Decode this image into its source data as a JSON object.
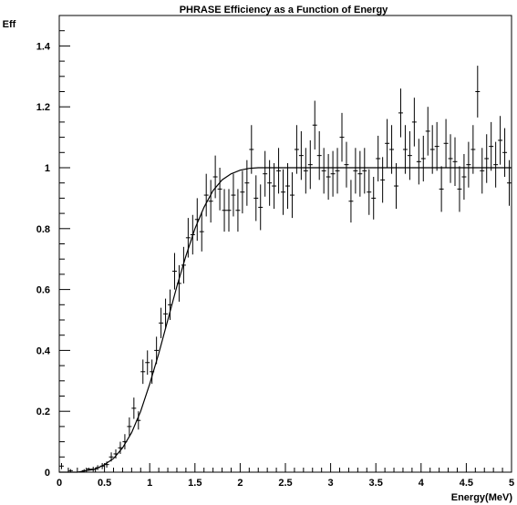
{
  "chart_data": {
    "type": "scatter",
    "title": "PHRASE Efficiency as a Function of Energy",
    "xlabel": "Energy(MeV)",
    "ylabel": "Eff",
    "xlim": [
      0,
      5
    ],
    "ylim": [
      0,
      1.5
    ],
    "x_ticks": [
      0,
      0.5,
      1,
      1.5,
      2,
      2.5,
      3,
      3.5,
      4,
      4.5,
      5
    ],
    "x_tick_labels": [
      "0",
      "0.5",
      "1",
      "1.5",
      "2",
      "2.5",
      "3",
      "3.5",
      "4",
      "4.5",
      "5"
    ],
    "y_ticks": [
      0,
      0.2,
      0.4,
      0.6,
      0.8,
      1,
      1.2,
      1.4
    ],
    "y_tick_labels": [
      "0",
      "0.2",
      "0.4",
      "0.6",
      "0.8",
      "1",
      "1.2",
      "1.4"
    ],
    "grid": false,
    "legend": "none",
    "colors": {
      "marks": "#000000",
      "background": "#ffffff"
    },
    "x_bin_halfwidth": 0.025,
    "series": [
      {
        "kind": "points_with_errors",
        "x": [
          0.025,
          0.075,
          0.125,
          0.175,
          0.225,
          0.275,
          0.325,
          0.375,
          0.425,
          0.475,
          0.525,
          0.575,
          0.625,
          0.675,
          0.725,
          0.775,
          0.825,
          0.875,
          0.925,
          0.975,
          1.025,
          1.075,
          1.125,
          1.175,
          1.225,
          1.275,
          1.325,
          1.375,
          1.425,
          1.475,
          1.525,
          1.575,
          1.625,
          1.675,
          1.725,
          1.775,
          1.825,
          1.875,
          1.925,
          1.975,
          2.025,
          2.075,
          2.125,
          2.175,
          2.225,
          2.275,
          2.325,
          2.375,
          2.425,
          2.475,
          2.525,
          2.575,
          2.625,
          2.675,
          2.725,
          2.775,
          2.825,
          2.875,
          2.925,
          2.975,
          3.025,
          3.075,
          3.125,
          3.175,
          3.225,
          3.275,
          3.325,
          3.375,
          3.425,
          3.475,
          3.525,
          3.575,
          3.625,
          3.675,
          3.725,
          3.775,
          3.825,
          3.875,
          3.925,
          3.975,
          4.025,
          4.075,
          4.125,
          4.175,
          4.225,
          4.275,
          4.325,
          4.375,
          4.425,
          4.475,
          4.525,
          4.575,
          4.625,
          4.675,
          4.725,
          4.775,
          4.825,
          4.875,
          4.925,
          4.975
        ],
        "y": [
          0.02,
          0.0,
          0.005,
          0.0,
          0.0,
          0.005,
          0.01,
          0.01,
          0.015,
          0.02,
          0.025,
          0.05,
          0.06,
          0.08,
          0.1,
          0.15,
          0.21,
          0.17,
          0.33,
          0.36,
          0.33,
          0.4,
          0.49,
          0.52,
          0.55,
          0.66,
          0.62,
          0.68,
          0.77,
          0.78,
          0.83,
          0.79,
          0.91,
          0.89,
          0.97,
          0.93,
          0.86,
          0.86,
          0.91,
          0.86,
          0.92,
          0.95,
          1.06,
          0.9,
          0.87,
          0.98,
          0.95,
          0.94,
          0.99,
          0.92,
          0.94,
          0.91,
          1.06,
          1.04,
          0.99,
          1.01,
          1.14,
          1.04,
          0.99,
          0.97,
          0.98,
          0.99,
          1.1,
          1.01,
          0.89,
          0.99,
          0.98,
          0.99,
          0.92,
          0.9,
          1.03,
          0.96,
          1.08,
          1.06,
          0.94,
          1.18,
          1.06,
          1.04,
          1.15,
          1.02,
          1.03,
          1.12,
          1.06,
          1.07,
          0.93,
          1.08,
          1.03,
          1.02,
          0.93,
          0.97,
          1.01,
          1.06,
          1.25,
          0.99,
          1.03,
          1.07,
          1.01,
          1.09,
          1.05,
          0.95
        ],
        "yerr": [
          0.01,
          0.0,
          0.005,
          0.0,
          0.0,
          0.005,
          0.005,
          0.008,
          0.008,
          0.01,
          0.01,
          0.015,
          0.015,
          0.02,
          0.025,
          0.03,
          0.035,
          0.03,
          0.04,
          0.04,
          0.04,
          0.045,
          0.05,
          0.05,
          0.05,
          0.06,
          0.06,
          0.06,
          0.065,
          0.065,
          0.07,
          0.065,
          0.07,
          0.07,
          0.07,
          0.07,
          0.07,
          0.07,
          0.07,
          0.07,
          0.07,
          0.075,
          0.08,
          0.075,
          0.075,
          0.075,
          0.075,
          0.075,
          0.075,
          0.075,
          0.075,
          0.075,
          0.08,
          0.08,
          0.075,
          0.08,
          0.08,
          0.08,
          0.075,
          0.075,
          0.075,
          0.075,
          0.08,
          0.075,
          0.07,
          0.075,
          0.075,
          0.075,
          0.075,
          0.07,
          0.075,
          0.075,
          0.08,
          0.08,
          0.075,
          0.08,
          0.08,
          0.08,
          0.08,
          0.075,
          0.075,
          0.08,
          0.08,
          0.08,
          0.075,
          0.08,
          0.08,
          0.08,
          0.075,
          0.075,
          0.075,
          0.08,
          0.085,
          0.075,
          0.08,
          0.08,
          0.075,
          0.08,
          0.08,
          0.075
        ]
      },
      {
        "kind": "fit_curve",
        "x": [
          0,
          0.1,
          0.2,
          0.3,
          0.4,
          0.5,
          0.6,
          0.7,
          0.8,
          0.9,
          1.0,
          1.1,
          1.2,
          1.3,
          1.4,
          1.5,
          1.6,
          1.7,
          1.8,
          1.9,
          2.0,
          2.1,
          2.2,
          2.3,
          2.4,
          2.5,
          3.0,
          3.5,
          4.0,
          4.5,
          5.0
        ],
        "y": [
          0.0,
          0.0,
          0.0,
          0.005,
          0.01,
          0.025,
          0.045,
          0.08,
          0.13,
          0.2,
          0.29,
          0.39,
          0.5,
          0.61,
          0.71,
          0.8,
          0.87,
          0.925,
          0.96,
          0.98,
          0.992,
          0.998,
          1.0,
          1.0,
          1.0,
          1.0,
          1.0,
          1.0,
          1.0,
          1.0,
          1.0
        ]
      }
    ]
  }
}
